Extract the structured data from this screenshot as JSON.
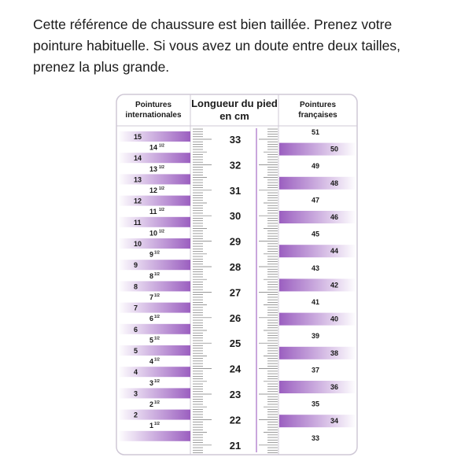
{
  "intro": [
    "Cette référence de chaussure est bien taillée. Prenez votre",
    "pointure habituelle. Si vous avez un doute entre deux tailles,",
    "prenez la plus grande."
  ],
  "table": {
    "headers": {
      "international": [
        "Pointures",
        "internationales"
      ],
      "length": [
        "Longueur du pied",
        "en cm"
      ],
      "french": [
        "Pointures",
        "françaises"
      ]
    },
    "international_sizes": [
      "15",
      {
        "main": "14",
        "sup": "1/2"
      },
      "14",
      {
        "main": "13",
        "sup": "1/2"
      },
      "13",
      {
        "main": "12",
        "sup": "1/2"
      },
      "12",
      {
        "main": "11",
        "sup": "1/2"
      },
      "11",
      {
        "main": "10",
        "sup": "1/2"
      },
      "10",
      {
        "main": "9",
        "sup": "1/2"
      },
      "9",
      {
        "main": "8",
        "sup": "1/2"
      },
      "8",
      {
        "main": "7",
        "sup": "1/2"
      },
      "7",
      {
        "main": "6",
        "sup": "1/2"
      },
      "6",
      {
        "main": "5",
        "sup": "1/2"
      },
      "5",
      {
        "main": "4",
        "sup": "1/2"
      },
      "4",
      {
        "main": "3",
        "sup": "1/2"
      },
      "3",
      {
        "main": "2",
        "sup": "1/2"
      },
      "2",
      {
        "main": "1",
        "sup": "1/2"
      }
    ],
    "cm": [
      "33",
      "32",
      "31",
      "30",
      "29",
      "28",
      "27",
      "26",
      "25",
      "24",
      "23",
      "22",
      "21"
    ],
    "french_sizes": [
      "51",
      "50",
      "49",
      "48",
      "47",
      "46",
      "45",
      "44",
      "43",
      "42",
      "41",
      "40",
      "39",
      "38",
      "37",
      "36",
      "35",
      "34",
      "33"
    ]
  }
}
